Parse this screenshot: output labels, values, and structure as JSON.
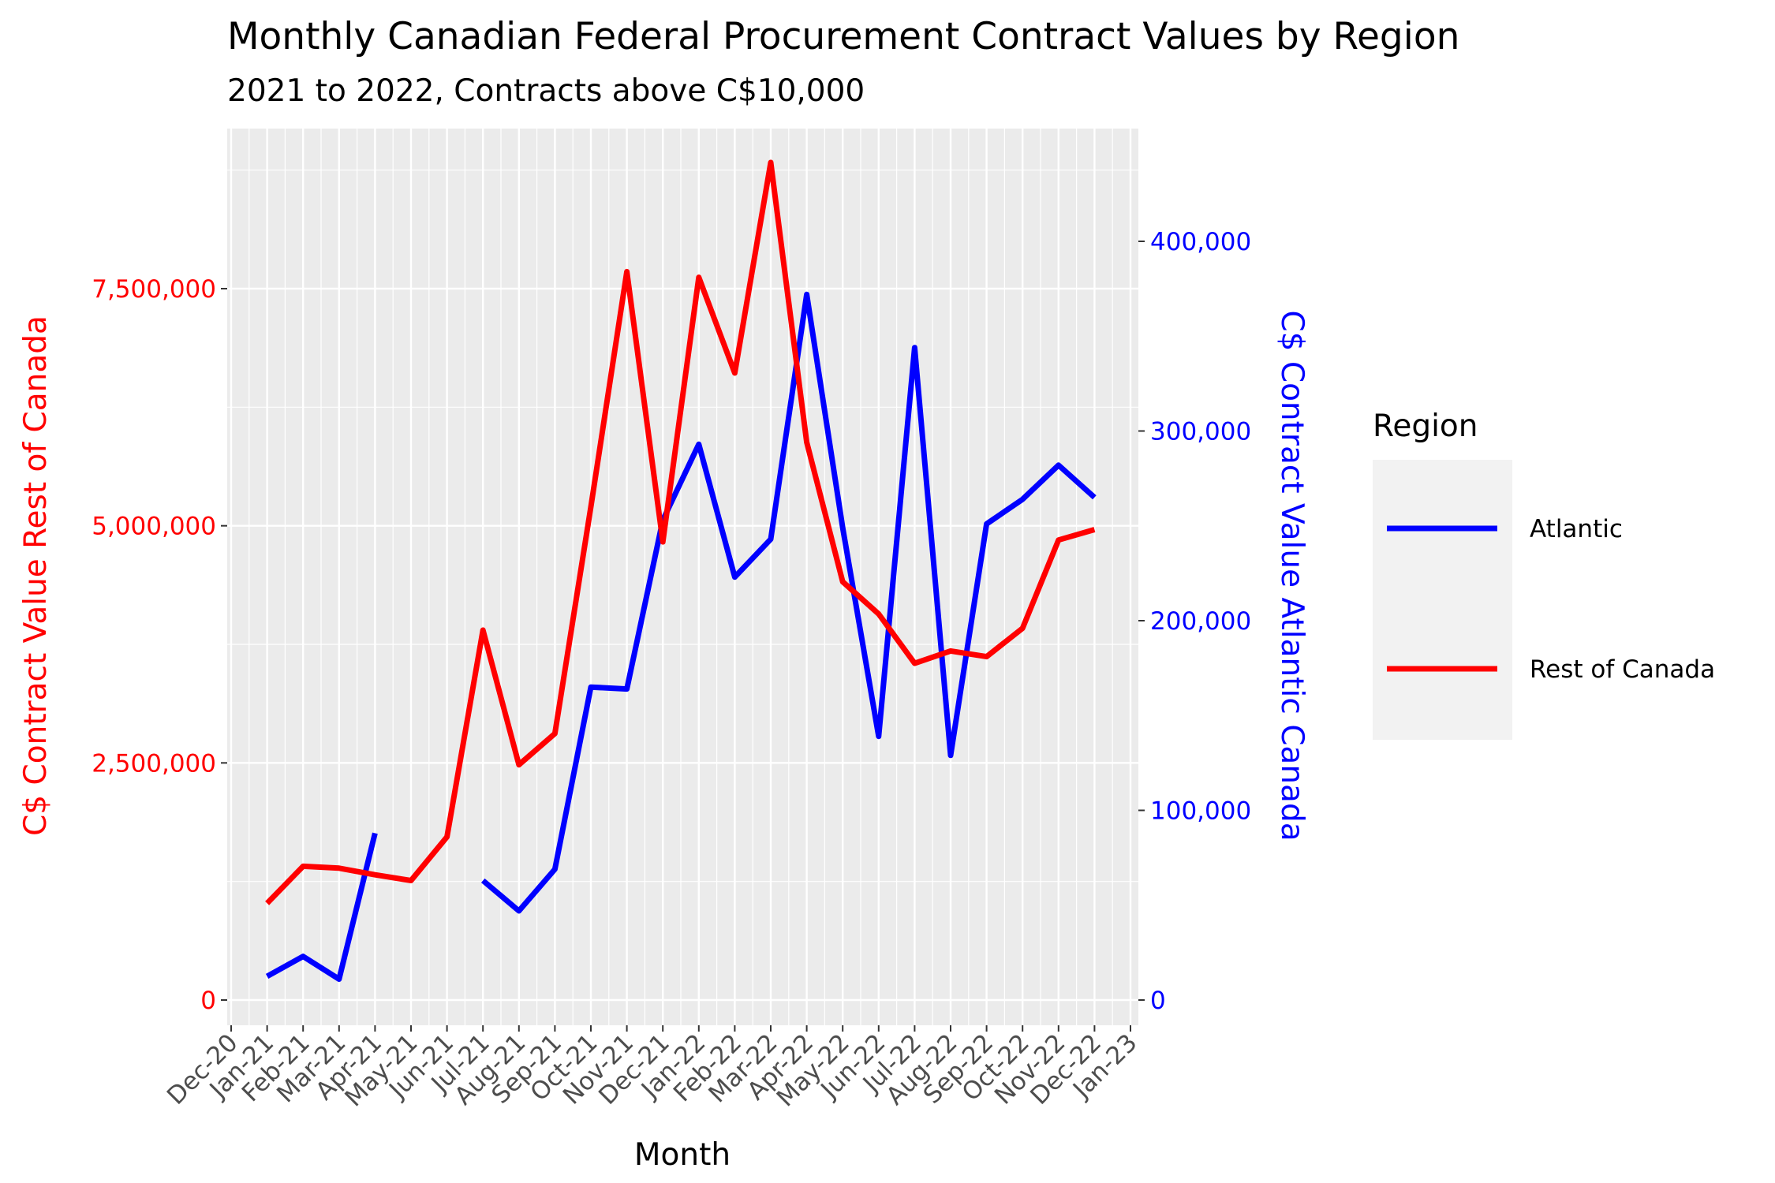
{
  "chart_data": {
    "type": "line",
    "title": "Monthly Canadian Federal Procurement Contract Values by Region",
    "subtitle": "2021 to 2022, Contracts above C$10,000",
    "xlabel": "Month",
    "ylabel_left": "C$ Contract Value Rest of Canada",
    "ylabel_right": "C$ Contract Value Atlantic Canada",
    "x_tick_labels": [
      "Dec-20",
      "Jan-21",
      "Feb-21",
      "Mar-21",
      "Apr-21",
      "May-21",
      "Jun-21",
      "Jul-21",
      "Aug-21",
      "Sep-21",
      "Oct-21",
      "Nov-21",
      "Dec-21",
      "Jan-22",
      "Feb-22",
      "Mar-22",
      "Apr-22",
      "May-22",
      "Jun-22",
      "Jul-22",
      "Aug-22",
      "Sep-22",
      "Oct-22",
      "Nov-22",
      "Dec-22",
      "Jan-23"
    ],
    "categories": [
      "Jan-21",
      "Feb-21",
      "Mar-21",
      "Apr-21",
      "May-21",
      "Jun-21",
      "Jul-21",
      "Aug-21",
      "Sep-21",
      "Oct-21",
      "Nov-21",
      "Dec-21",
      "Jan-22",
      "Feb-22",
      "Mar-22",
      "Apr-22",
      "May-22",
      "Jun-22",
      "Jul-22",
      "Aug-22",
      "Sep-22",
      "Oct-22",
      "Nov-22",
      "Dec-22"
    ],
    "y_left_ticks": [
      {
        "value": 0,
        "label": "0"
      },
      {
        "value": 2500000,
        "label": "2,500,000"
      },
      {
        "value": 5000000,
        "label": "5,000,000"
      },
      {
        "value": 7500000,
        "label": "7,500,000"
      }
    ],
    "y_right_ticks": [
      {
        "value": 0,
        "label": "0"
      },
      {
        "value": 100000,
        "label": "100,000"
      },
      {
        "value": 200000,
        "label": "200,000"
      },
      {
        "value": 300000,
        "label": "300,000"
      },
      {
        "value": 400000,
        "label": "400,000"
      }
    ],
    "ylim_left": [
      -300000,
      9100000
    ],
    "ylim_right": [
      -15000,
      460000
    ],
    "grid": true,
    "legend": {
      "title": "Region",
      "position": "right"
    },
    "series": [
      {
        "name": "Atlantic",
        "axis": "right",
        "color": "#0000ff",
        "values": [
          12500,
          23000,
          11000,
          88000,
          null,
          null,
          63000,
          47000,
          69000,
          165000,
          164000,
          253000,
          293000,
          223000,
          243000,
          372000,
          249000,
          139000,
          344000,
          129000,
          251000,
          264000,
          282000,
          265000
        ]
      },
      {
        "name": "Rest of Canada",
        "axis": "left",
        "color": "#ff0000",
        "values": [
          1020000,
          1410000,
          1390000,
          1320000,
          1260000,
          1720000,
          3900000,
          2480000,
          2810000,
          5200000,
          7680000,
          4830000,
          7620000,
          6610000,
          8830000,
          5880000,
          4410000,
          4070000,
          3550000,
          3680000,
          3620000,
          3920000,
          4850000,
          4960000
        ]
      }
    ]
  }
}
